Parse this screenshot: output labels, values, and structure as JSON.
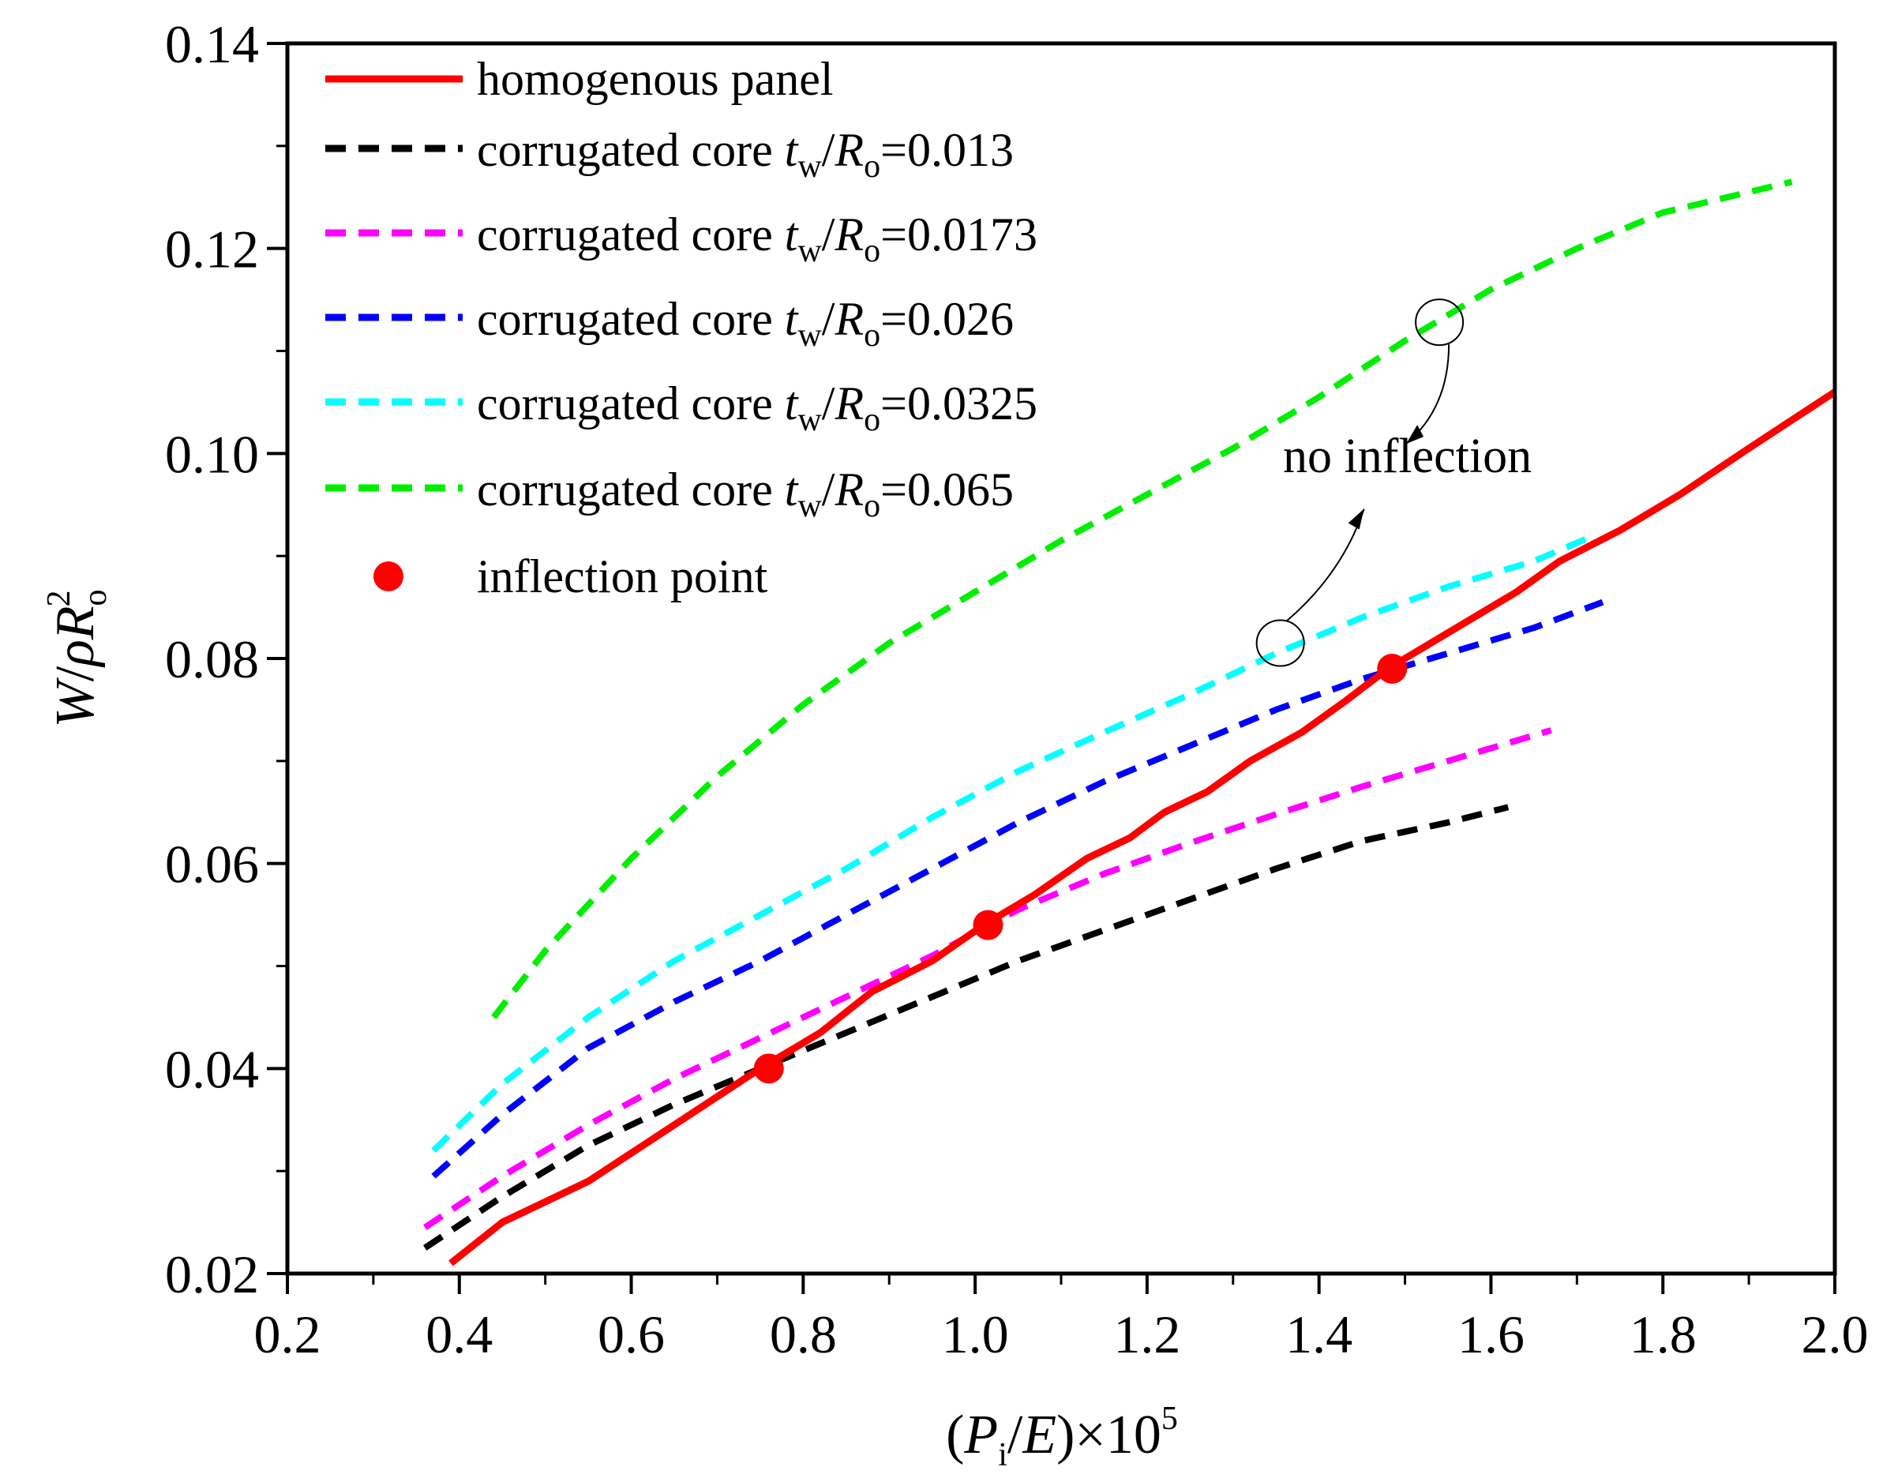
{
  "chart_data": {
    "type": "line",
    "title": "",
    "xlabel": "(P_i/E)×10^5",
    "ylabel": "W/ρR_o^2",
    "xlabel_parts": {
      "open": "(",
      "P": "P",
      "i": "i",
      "slash": "/",
      "E": "E",
      "close": ")×10",
      "exp": "5"
    },
    "ylabel_parts": {
      "W": "W",
      "slash": "/",
      "rho": "ρ",
      "R": "R",
      "sub": "o",
      "sup": "2"
    },
    "xlim": [
      0.2,
      2.0
    ],
    "ylim": [
      0.02,
      0.14
    ],
    "x_ticks": [
      0.2,
      0.4,
      0.6,
      0.8,
      1.0,
      1.2,
      1.4,
      1.6,
      1.8,
      2.0
    ],
    "x_tick_labels": [
      "0.2",
      "0.4",
      "0.6",
      "0.8",
      "1.0",
      "1.2",
      "1.4",
      "1.6",
      "1.8",
      "2.0"
    ],
    "y_ticks": [
      0.02,
      0.04,
      0.06,
      0.08,
      0.1,
      0.12,
      0.14
    ],
    "y_tick_labels": [
      "0.02",
      "0.04",
      "0.06",
      "0.08",
      "0.10",
      "0.12",
      "0.14"
    ],
    "grid": false,
    "legend_position": "top-left",
    "series": [
      {
        "name": "homogenous panel",
        "legend_label": "homogenous panel",
        "color": "#ff0000",
        "style": "solid",
        "x": [
          0.39,
          0.45,
          0.55,
          0.65,
          0.75,
          0.82,
          0.88,
          0.95,
          1.01,
          1.07,
          1.13,
          1.18,
          1.22,
          1.27,
          1.32,
          1.38,
          1.43,
          1.48,
          1.55,
          1.63,
          1.68,
          1.75,
          1.82,
          1.9,
          2.0
        ],
        "y": [
          0.021,
          0.025,
          0.029,
          0.0345,
          0.04,
          0.0435,
          0.0475,
          0.0505,
          0.054,
          0.057,
          0.0605,
          0.0625,
          0.065,
          0.067,
          0.07,
          0.0728,
          0.0758,
          0.079,
          0.0825,
          0.0865,
          0.0895,
          0.0925,
          0.096,
          0.1005,
          0.106
        ]
      },
      {
        "name": "corrugated core t_w/R_o=0.013",
        "legend_prefix": "corrugated core ",
        "t": "t",
        "w": "w",
        "R": "R",
        "o": "o",
        "value": "=0.013",
        "color": "#000000",
        "style": "dashed",
        "x": [
          0.36,
          0.45,
          0.55,
          0.65,
          0.75,
          0.85,
          0.95,
          1.05,
          1.15,
          1.25,
          1.35,
          1.45,
          1.55,
          1.62
        ],
        "y": [
          0.0225,
          0.0275,
          0.0325,
          0.0365,
          0.04,
          0.0435,
          0.047,
          0.0505,
          0.0535,
          0.0565,
          0.0595,
          0.0622,
          0.064,
          0.0655
        ]
      },
      {
        "name": "corrugated core t_w/R_o=0.0173",
        "legend_prefix": "corrugated core ",
        "t": "t",
        "w": "w",
        "R": "R",
        "o": "o",
        "value": "=0.0173",
        "color": "#ff00ff",
        "style": "dashed",
        "x": [
          0.36,
          0.45,
          0.55,
          0.65,
          0.75,
          0.85,
          0.95,
          1.05,
          1.15,
          1.25,
          1.35,
          1.45,
          1.55,
          1.67
        ],
        "y": [
          0.0245,
          0.0295,
          0.0345,
          0.039,
          0.043,
          0.047,
          0.051,
          0.0555,
          0.059,
          0.062,
          0.0648,
          0.0675,
          0.07,
          0.073
        ]
      },
      {
        "name": "corrugated core t_w/R_o=0.026",
        "legend_prefix": "corrugated core ",
        "t": "t",
        "w": "w",
        "R": "R",
        "o": "o",
        "value": "=0.026",
        "color": "#0000ff",
        "style": "dashed",
        "x": [
          0.37,
          0.45,
          0.55,
          0.65,
          0.75,
          0.85,
          0.95,
          1.05,
          1.15,
          1.25,
          1.35,
          1.45,
          1.55,
          1.65,
          1.73
        ],
        "y": [
          0.0295,
          0.0355,
          0.042,
          0.0465,
          0.0505,
          0.055,
          0.0595,
          0.064,
          0.068,
          0.0715,
          0.075,
          0.078,
          0.0805,
          0.083,
          0.0855
        ]
      },
      {
        "name": "corrugated core t_w/R_o=0.0325",
        "legend_prefix": "corrugated core ",
        "t": "t",
        "w": "w",
        "R": "R",
        "o": "o",
        "value": "=0.0325",
        "color": "#00ffff",
        "style": "dashed",
        "x": [
          0.37,
          0.45,
          0.55,
          0.65,
          0.75,
          0.85,
          0.95,
          1.05,
          1.15,
          1.25,
          1.35,
          1.45,
          1.55,
          1.65,
          1.72
        ],
        "y": [
          0.032,
          0.0385,
          0.045,
          0.0505,
          0.055,
          0.0595,
          0.0645,
          0.069,
          0.0728,
          0.0765,
          0.0805,
          0.084,
          0.087,
          0.0895,
          0.092
        ]
      },
      {
        "name": "corrugated core t_w/R_o=0.065",
        "legend_prefix": "corrugated core ",
        "t": "t",
        "w": "w",
        "R": "R",
        "o": "o",
        "value": "=0.065",
        "color": "#00ee00",
        "style": "dashed",
        "x": [
          0.44,
          0.5,
          0.6,
          0.7,
          0.8,
          0.9,
          1.0,
          1.1,
          1.2,
          1.3,
          1.4,
          1.5,
          1.6,
          1.7,
          1.8,
          1.95
        ],
        "y": [
          0.045,
          0.0515,
          0.0605,
          0.0685,
          0.0755,
          0.0815,
          0.0865,
          0.0915,
          0.096,
          0.1005,
          0.1055,
          0.111,
          0.116,
          0.12,
          0.1235,
          0.1265
        ]
      }
    ],
    "inflection_points": {
      "legend_label": "inflection point",
      "color": "#ff0000",
      "points": [
        {
          "x": 0.76,
          "y": 0.04
        },
        {
          "x": 1.015,
          "y": 0.054
        },
        {
          "x": 1.485,
          "y": 0.079
        }
      ]
    },
    "annotations": [
      {
        "text": "no inflection",
        "anchor": {
          "x": 1.57,
          "y": 0.102
        },
        "circles": [
          {
            "x": 1.54,
            "y": 0.1128
          },
          {
            "x": 1.355,
            "y": 0.0815
          }
        ]
      }
    ]
  }
}
